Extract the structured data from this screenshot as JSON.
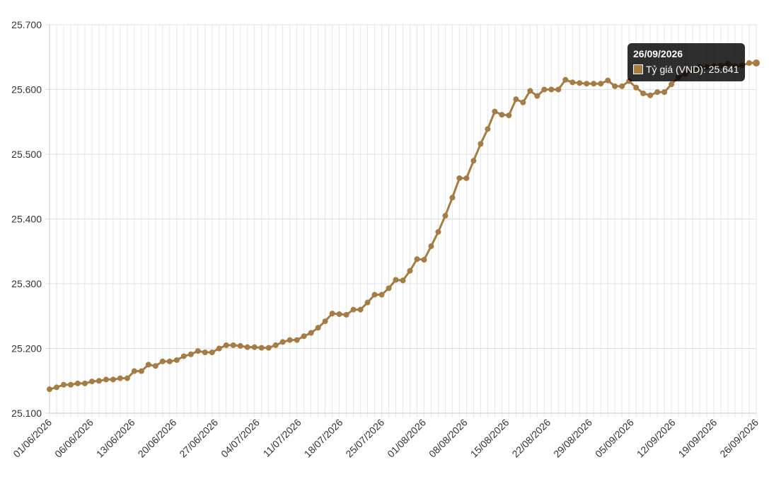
{
  "chart_data": {
    "type": "line",
    "title": "",
    "xlabel": "",
    "ylabel": "",
    "ylim": [
      25100,
      25700
    ],
    "y_ticks": [
      "25.100",
      "25.200",
      "25.300",
      "25.400",
      "25.500",
      "25.600",
      "25.700"
    ],
    "x_tick_labels": [
      "01/06/2026",
      "06/06/2026",
      "13/06/2026",
      "20/06/2026",
      "27/06/2026",
      "04/07/2026",
      "11/07/2026",
      "18/07/2026",
      "25/07/2026",
      "01/08/2026",
      "08/08/2026",
      "15/08/2026",
      "22/08/2026",
      "29/08/2026",
      "05/09/2026",
      "12/09/2026",
      "19/09/2026",
      "26/09/2026"
    ],
    "grid": true,
    "series": [
      {
        "name": "Tỷ giá (VND)",
        "color": "#a57c43",
        "values": [
          25137,
          25140,
          25144,
          25144,
          25146,
          25146,
          25149,
          25150,
          25152,
          25152,
          25154,
          25154,
          25165,
          25165,
          25175,
          25173,
          25180,
          25180,
          25182,
          25188,
          25191,
          25196,
          25194,
          25194,
          25200,
          25205,
          25205,
          25204,
          25202,
          25202,
          25201,
          25201,
          25205,
          25210,
          25213,
          25213,
          25219,
          25224,
          25232,
          25242,
          25254,
          25253,
          25252,
          25260,
          25260,
          25271,
          25283,
          25283,
          25293,
          25306,
          25305,
          25320,
          25338,
          25337,
          25358,
          25380,
          25405,
          25433,
          25463,
          25463,
          25490,
          25516,
          25539,
          25566,
          25561,
          25560,
          25585,
          25580,
          25598,
          25590,
          25600,
          25600,
          25600,
          25615,
          25611,
          25610,
          25609,
          25609,
          25609,
          25614,
          25605,
          25605,
          25613,
          25603,
          25594,
          25591,
          25596,
          25596,
          25608,
          25619,
          25624,
          25630,
          25635,
          25635,
          25636,
          25637,
          25640,
          25636,
          25637,
          25641,
          25641
        ]
      }
    ]
  },
  "tooltip": {
    "title": "26/09/2026",
    "label": "Tỷ giá (VND): 25.641"
  }
}
